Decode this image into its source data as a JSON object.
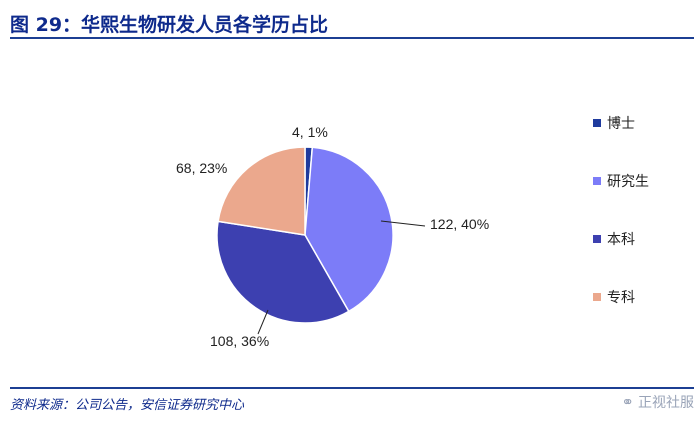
{
  "figure": {
    "title": "图 29：华熙生物研发人员各学历占比"
  },
  "chart_data": {
    "type": "pie",
    "slices": [
      {
        "label": "博士",
        "value": 4,
        "percent": 1,
        "data_label": "4, 1%",
        "color": "#1f3b9e"
      },
      {
        "label": "研究生",
        "value": 122,
        "percent": 40,
        "data_label": "122, 40%",
        "color": "#7c7cf8"
      },
      {
        "label": "本科",
        "value": 108,
        "percent": 36,
        "data_label": "108, 36%",
        "color": "#3d40b0"
      },
      {
        "label": "专科",
        "value": 68,
        "percent": 23,
        "data_label": "68, 23%",
        "color": "#eba88d"
      }
    ],
    "start_angle_deg": 0,
    "direction": "clockwise",
    "legend_position": "right"
  },
  "source": {
    "text": "资料来源：公司公告，安信证券研究中心"
  },
  "watermark": {
    "icon": "wechat-icon",
    "text": "正视社服"
  }
}
